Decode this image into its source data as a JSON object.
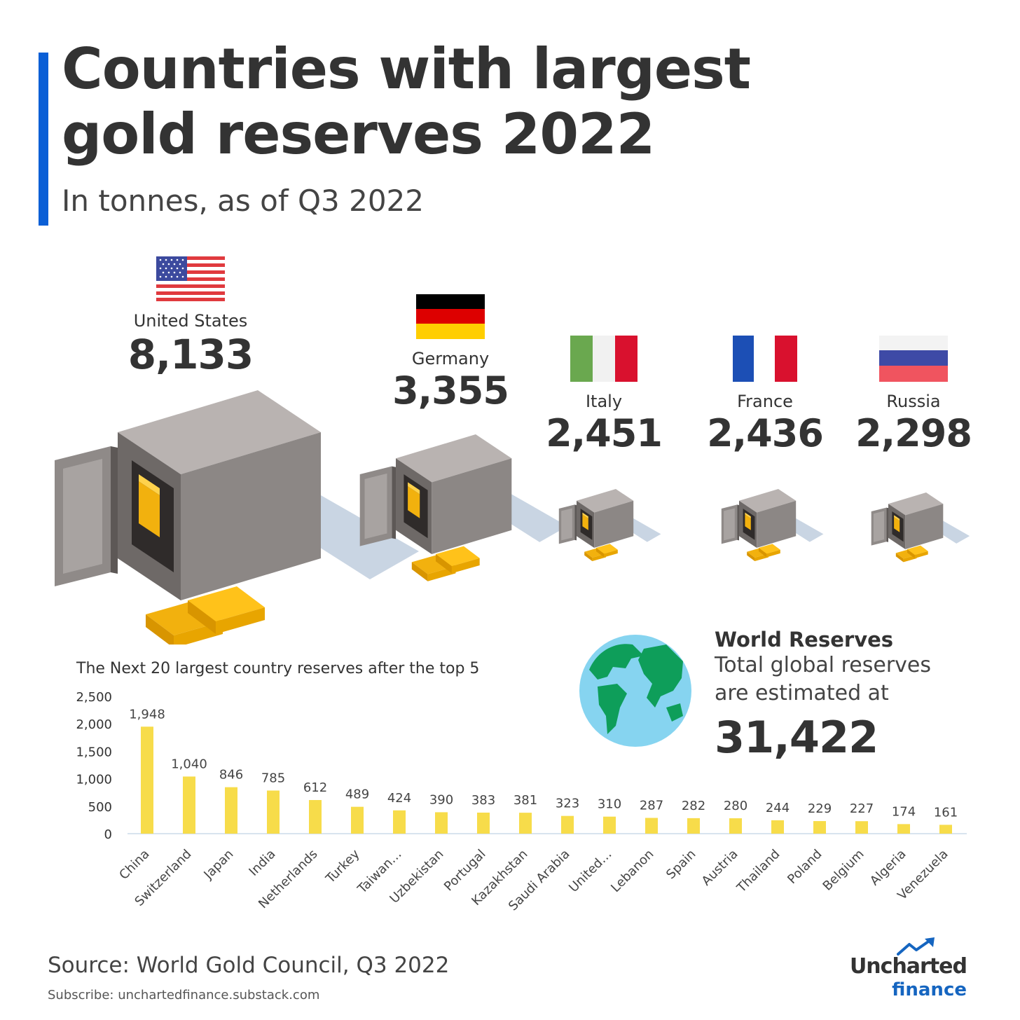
{
  "header": {
    "title_line1": "Countries with largest",
    "title_line2": "gold reserves 2022",
    "subtitle": "In tonnes, as of Q3 2022",
    "accent_color": "#0a5fd6"
  },
  "top5": [
    {
      "name": "United States",
      "value": "8,133",
      "flag": "us-flag-icon"
    },
    {
      "name": "Germany",
      "value": "3,355",
      "flag": "germany-flag-icon"
    },
    {
      "name": "Italy",
      "value": "2,451",
      "flag": "italy-flag-icon"
    },
    {
      "name": "France",
      "value": "2,436",
      "flag": "france-flag-icon"
    },
    {
      "name": "Russia",
      "value": "2,298",
      "flag": "russia-flag-icon"
    }
  ],
  "world": {
    "title": "World Reserves",
    "line1": "Total global reserves",
    "line2": "are estimated at",
    "value": "31,422"
  },
  "chart_data": {
    "type": "bar",
    "title": "The Next 20 largest country reserves after the top 5",
    "categories": [
      "China",
      "Switzerland",
      "Japan",
      "India",
      "Netherlands",
      "Turkey",
      "Taiwan…",
      "Uzbekistan",
      "Portugal",
      "Kazakhstan",
      "Saudi Arabia",
      "United…",
      "Lebanon",
      "Spain",
      "Austria",
      "Thailand",
      "Poland",
      "Belgium",
      "Algeria",
      "Venezuela"
    ],
    "values": [
      1948,
      1040,
      846,
      785,
      612,
      489,
      424,
      390,
      383,
      381,
      323,
      310,
      287,
      282,
      280,
      244,
      229,
      227,
      174,
      161
    ],
    "value_labels": [
      "1,948",
      "1,040",
      "846",
      "785",
      "612",
      "489",
      "424",
      "390",
      "383",
      "381",
      "323",
      "310",
      "287",
      "282",
      "280",
      "244",
      "229",
      "227",
      "174",
      "161"
    ],
    "y_ticks": [
      0,
      500,
      1000,
      1500,
      2000,
      2500
    ],
    "y_tick_labels": [
      "0",
      "500",
      "1,000",
      "1,500",
      "2,000",
      "2,500"
    ],
    "ylim": [
      0,
      2500
    ],
    "bar_color": "#f7dc4a",
    "grid": false
  },
  "footer": {
    "source": "Source: World Gold Council, Q3 2022",
    "subscribe": "Subscribe: unchartedfinance.substack.com",
    "logo_line1": "Uncharted",
    "logo_line2": "finance"
  }
}
